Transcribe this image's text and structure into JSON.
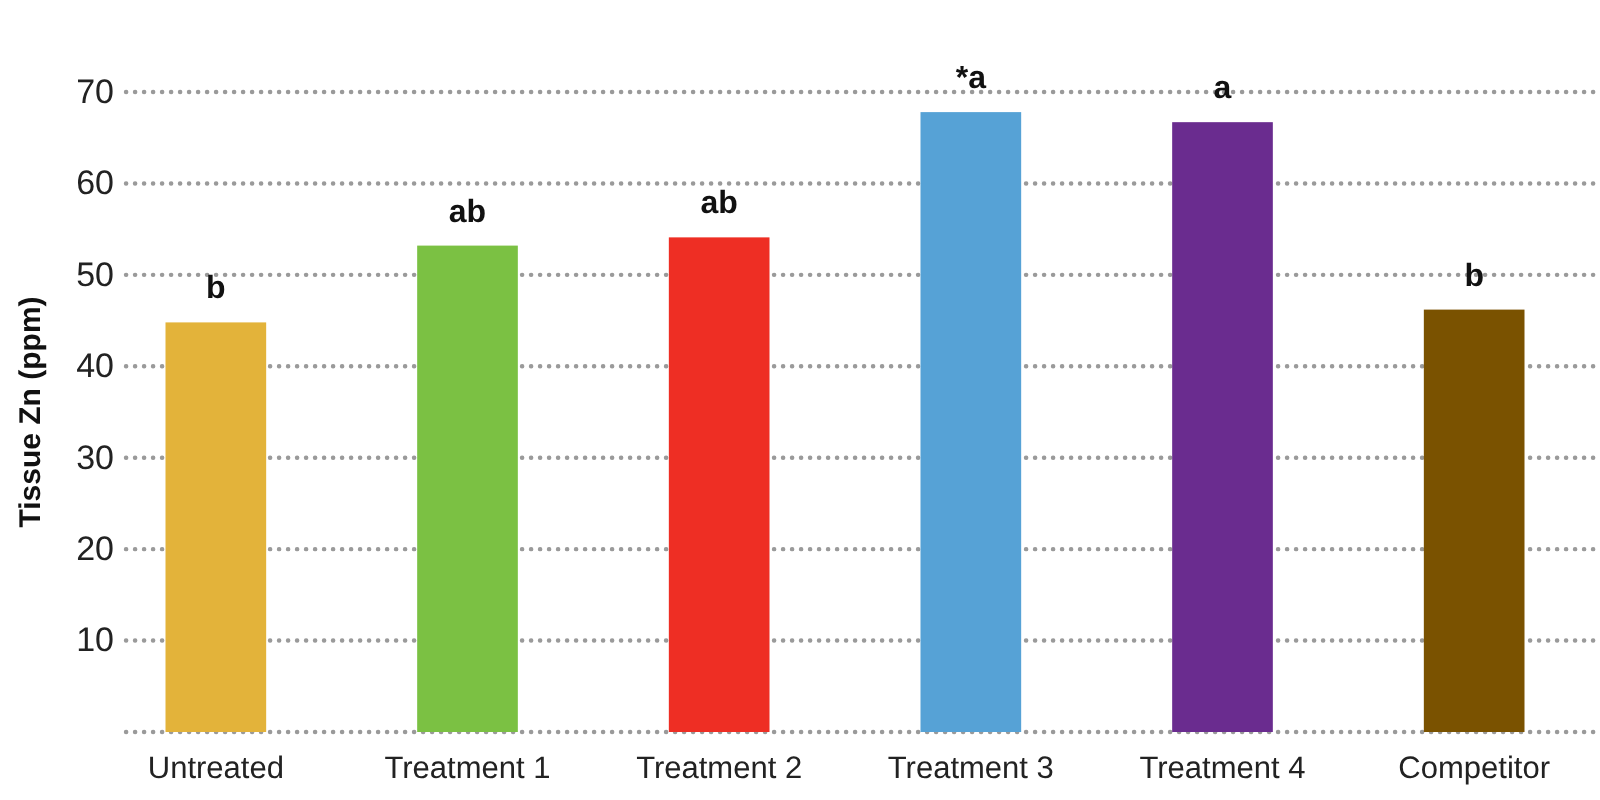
{
  "chart_data": {
    "type": "bar",
    "ylabel": "Tissue Zn (ppm)",
    "categories": [
      "Untreated",
      "Treatment 1",
      "Treatment 2",
      "Treatment 3",
      "Treatment 4",
      "Competitor"
    ],
    "values": [
      44.8,
      53.2,
      54.1,
      67.8,
      66.7,
      46.2
    ],
    "colors": [
      "#e3b33a",
      "#7bc143",
      "#ee2e24",
      "#56a2d6",
      "#6a2c8f",
      "#7a5200"
    ],
    "ylim": [
      0,
      70
    ],
    "yticks": [
      {
        "value": 0,
        "label": null
      },
      10,
      20,
      30,
      40,
      50,
      60,
      70
    ],
    "grid": "y",
    "annotations": [
      {
        "text": "b",
        "x": "Untreated",
        "y": 44.8
      },
      {
        "text": "ab",
        "x": "Treatment 1",
        "y": 53.2
      },
      {
        "text": "ab",
        "x": "Treatment 2",
        "y": 54.1
      },
      {
        "text": "*a",
        "x": "Treatment 3",
        "y": 67.8
      },
      {
        "text": "a",
        "x": "Treatment 4",
        "y": 66.7
      },
      {
        "text": "b",
        "x": "Competitor",
        "y": 46.2
      }
    ]
  }
}
